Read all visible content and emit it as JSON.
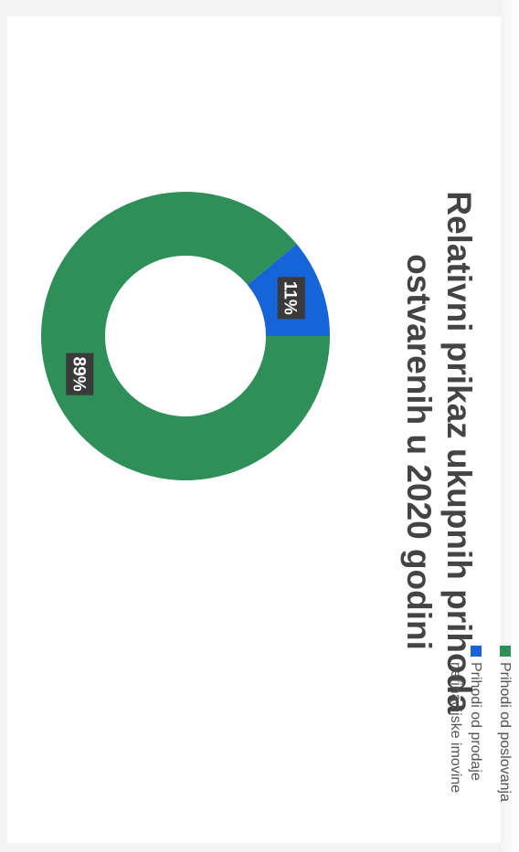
{
  "chart_data": {
    "type": "pie",
    "title": "Relativni prikaz ukupnih prihoda ostvarenih u 2020 godini",
    "title_lines": [
      "Relativni prikaz ukupnih prihoda",
      "ostvarenih u 2020 godini"
    ],
    "categories": [
      "Prihodi od poslovanja",
      "Prihodi od prodaje nefinacijske imovine"
    ],
    "values": [
      89,
      11
    ],
    "labels": [
      "89%",
      "11%"
    ],
    "colors": [
      "#2e8f59",
      "#1565d8"
    ],
    "donut": true,
    "legend_position": "right",
    "legend_lines": [
      [
        "Prihodi od poslovanja"
      ],
      [
        "Prihodi od prodaje",
        "nefinacijske imovine"
      ]
    ]
  }
}
